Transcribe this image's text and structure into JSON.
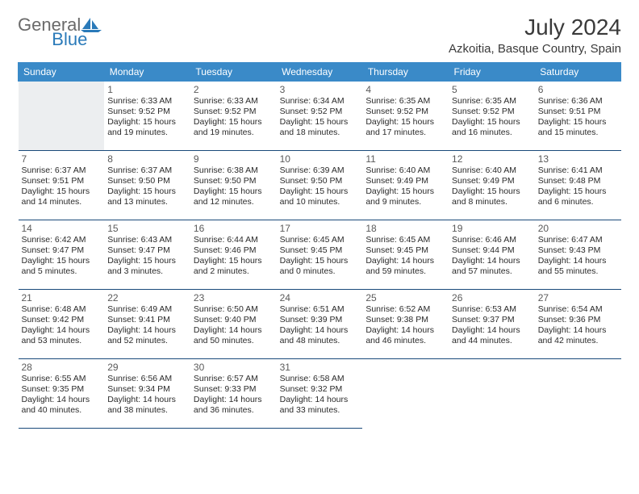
{
  "brand": {
    "text_general": "General",
    "text_blue": "Blue",
    "accent_color": "#2a7ab9"
  },
  "header": {
    "month_title": "July 2024",
    "location": "Azkoitia, Basque Country, Spain"
  },
  "colors": {
    "header_bg": "#3a8ac8",
    "header_text": "#ffffff",
    "cell_border": "#1a4a7a",
    "empty_lead_bg": "#eceef0",
    "daynum_color": "#5a5a5a",
    "body_text": "#2a2a2a",
    "page_bg": "#ffffff"
  },
  "calendar": {
    "day_names": [
      "Sunday",
      "Monday",
      "Tuesday",
      "Wednesday",
      "Thursday",
      "Friday",
      "Saturday"
    ],
    "lead_blanks": 1,
    "trail_blanks": 3,
    "days": [
      {
        "n": "1",
        "sunrise": "Sunrise: 6:33 AM",
        "sunset": "Sunset: 9:52 PM",
        "d1": "Daylight: 15 hours",
        "d2": "and 19 minutes."
      },
      {
        "n": "2",
        "sunrise": "Sunrise: 6:33 AM",
        "sunset": "Sunset: 9:52 PM",
        "d1": "Daylight: 15 hours",
        "d2": "and 19 minutes."
      },
      {
        "n": "3",
        "sunrise": "Sunrise: 6:34 AM",
        "sunset": "Sunset: 9:52 PM",
        "d1": "Daylight: 15 hours",
        "d2": "and 18 minutes."
      },
      {
        "n": "4",
        "sunrise": "Sunrise: 6:35 AM",
        "sunset": "Sunset: 9:52 PM",
        "d1": "Daylight: 15 hours",
        "d2": "and 17 minutes."
      },
      {
        "n": "5",
        "sunrise": "Sunrise: 6:35 AM",
        "sunset": "Sunset: 9:52 PM",
        "d1": "Daylight: 15 hours",
        "d2": "and 16 minutes."
      },
      {
        "n": "6",
        "sunrise": "Sunrise: 6:36 AM",
        "sunset": "Sunset: 9:51 PM",
        "d1": "Daylight: 15 hours",
        "d2": "and 15 minutes."
      },
      {
        "n": "7",
        "sunrise": "Sunrise: 6:37 AM",
        "sunset": "Sunset: 9:51 PM",
        "d1": "Daylight: 15 hours",
        "d2": "and 14 minutes."
      },
      {
        "n": "8",
        "sunrise": "Sunrise: 6:37 AM",
        "sunset": "Sunset: 9:50 PM",
        "d1": "Daylight: 15 hours",
        "d2": "and 13 minutes."
      },
      {
        "n": "9",
        "sunrise": "Sunrise: 6:38 AM",
        "sunset": "Sunset: 9:50 PM",
        "d1": "Daylight: 15 hours",
        "d2": "and 12 minutes."
      },
      {
        "n": "10",
        "sunrise": "Sunrise: 6:39 AM",
        "sunset": "Sunset: 9:50 PM",
        "d1": "Daylight: 15 hours",
        "d2": "and 10 minutes."
      },
      {
        "n": "11",
        "sunrise": "Sunrise: 6:40 AM",
        "sunset": "Sunset: 9:49 PM",
        "d1": "Daylight: 15 hours",
        "d2": "and 9 minutes."
      },
      {
        "n": "12",
        "sunrise": "Sunrise: 6:40 AM",
        "sunset": "Sunset: 9:49 PM",
        "d1": "Daylight: 15 hours",
        "d2": "and 8 minutes."
      },
      {
        "n": "13",
        "sunrise": "Sunrise: 6:41 AM",
        "sunset": "Sunset: 9:48 PM",
        "d1": "Daylight: 15 hours",
        "d2": "and 6 minutes."
      },
      {
        "n": "14",
        "sunrise": "Sunrise: 6:42 AM",
        "sunset": "Sunset: 9:47 PM",
        "d1": "Daylight: 15 hours",
        "d2": "and 5 minutes."
      },
      {
        "n": "15",
        "sunrise": "Sunrise: 6:43 AM",
        "sunset": "Sunset: 9:47 PM",
        "d1": "Daylight: 15 hours",
        "d2": "and 3 minutes."
      },
      {
        "n": "16",
        "sunrise": "Sunrise: 6:44 AM",
        "sunset": "Sunset: 9:46 PM",
        "d1": "Daylight: 15 hours",
        "d2": "and 2 minutes."
      },
      {
        "n": "17",
        "sunrise": "Sunrise: 6:45 AM",
        "sunset": "Sunset: 9:45 PM",
        "d1": "Daylight: 15 hours",
        "d2": "and 0 minutes."
      },
      {
        "n": "18",
        "sunrise": "Sunrise: 6:45 AM",
        "sunset": "Sunset: 9:45 PM",
        "d1": "Daylight: 14 hours",
        "d2": "and 59 minutes."
      },
      {
        "n": "19",
        "sunrise": "Sunrise: 6:46 AM",
        "sunset": "Sunset: 9:44 PM",
        "d1": "Daylight: 14 hours",
        "d2": "and 57 minutes."
      },
      {
        "n": "20",
        "sunrise": "Sunrise: 6:47 AM",
        "sunset": "Sunset: 9:43 PM",
        "d1": "Daylight: 14 hours",
        "d2": "and 55 minutes."
      },
      {
        "n": "21",
        "sunrise": "Sunrise: 6:48 AM",
        "sunset": "Sunset: 9:42 PM",
        "d1": "Daylight: 14 hours",
        "d2": "and 53 minutes."
      },
      {
        "n": "22",
        "sunrise": "Sunrise: 6:49 AM",
        "sunset": "Sunset: 9:41 PM",
        "d1": "Daylight: 14 hours",
        "d2": "and 52 minutes."
      },
      {
        "n": "23",
        "sunrise": "Sunrise: 6:50 AM",
        "sunset": "Sunset: 9:40 PM",
        "d1": "Daylight: 14 hours",
        "d2": "and 50 minutes."
      },
      {
        "n": "24",
        "sunrise": "Sunrise: 6:51 AM",
        "sunset": "Sunset: 9:39 PM",
        "d1": "Daylight: 14 hours",
        "d2": "and 48 minutes."
      },
      {
        "n": "25",
        "sunrise": "Sunrise: 6:52 AM",
        "sunset": "Sunset: 9:38 PM",
        "d1": "Daylight: 14 hours",
        "d2": "and 46 minutes."
      },
      {
        "n": "26",
        "sunrise": "Sunrise: 6:53 AM",
        "sunset": "Sunset: 9:37 PM",
        "d1": "Daylight: 14 hours",
        "d2": "and 44 minutes."
      },
      {
        "n": "27",
        "sunrise": "Sunrise: 6:54 AM",
        "sunset": "Sunset: 9:36 PM",
        "d1": "Daylight: 14 hours",
        "d2": "and 42 minutes."
      },
      {
        "n": "28",
        "sunrise": "Sunrise: 6:55 AM",
        "sunset": "Sunset: 9:35 PM",
        "d1": "Daylight: 14 hours",
        "d2": "and 40 minutes."
      },
      {
        "n": "29",
        "sunrise": "Sunrise: 6:56 AM",
        "sunset": "Sunset: 9:34 PM",
        "d1": "Daylight: 14 hours",
        "d2": "and 38 minutes."
      },
      {
        "n": "30",
        "sunrise": "Sunrise: 6:57 AM",
        "sunset": "Sunset: 9:33 PM",
        "d1": "Daylight: 14 hours",
        "d2": "and 36 minutes."
      },
      {
        "n": "31",
        "sunrise": "Sunrise: 6:58 AM",
        "sunset": "Sunset: 9:32 PM",
        "d1": "Daylight: 14 hours",
        "d2": "and 33 minutes."
      }
    ]
  }
}
